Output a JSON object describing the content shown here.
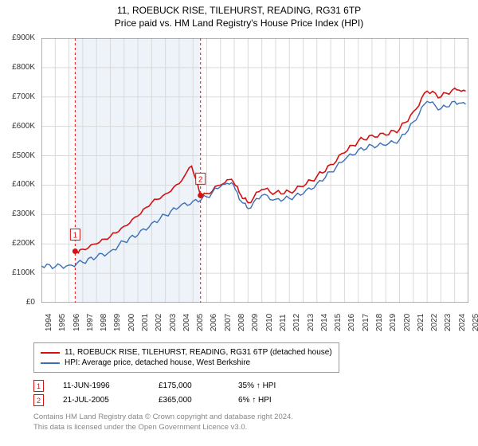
{
  "title": "11, ROEBUCK RISE, TILEHURST, READING, RG31 6TP",
  "subtitle": "Price paid vs. HM Land Registry's House Price Index (HPI)",
  "chart": {
    "type": "line",
    "background_color": "#ffffff",
    "grid_color": "#d9d9d9",
    "ylim": [
      0,
      900000
    ],
    "ytick_step": 100000,
    "y_ticks": [
      "£0",
      "£100K",
      "£200K",
      "£300K",
      "£400K",
      "£500K",
      "£600K",
      "£700K",
      "£800K",
      "£900K"
    ],
    "x_years": [
      1994,
      1995,
      1996,
      1997,
      1998,
      1999,
      2000,
      2001,
      2002,
      2003,
      2004,
      2005,
      2006,
      2007,
      2008,
      2009,
      2010,
      2011,
      2012,
      2013,
      2014,
      2015,
      2016,
      2017,
      2018,
      2019,
      2020,
      2021,
      2022,
      2023,
      2024,
      2025
    ],
    "shaded_band": {
      "from_year": 1996.5,
      "to_year": 2005.5,
      "fill": "#eef2f9"
    },
    "series": [
      {
        "name": "property",
        "label": "11, ROEBUCK RISE, TILEHURST, READING, RG31 6TP (detached house)",
        "color": "#d41111",
        "line_width": 1.6,
        "points": [
          [
            1996.45,
            175000
          ],
          [
            1997,
            182000
          ],
          [
            1998,
            200000
          ],
          [
            1999,
            225000
          ],
          [
            2000,
            260000
          ],
          [
            2001,
            295000
          ],
          [
            2002,
            340000
          ],
          [
            2003,
            370000
          ],
          [
            2004,
            405000
          ],
          [
            2004.9,
            465000
          ],
          [
            2005.55,
            365000
          ],
          [
            2006,
            372000
          ],
          [
            2007,
            400000
          ],
          [
            2007.8,
            420000
          ],
          [
            2008.5,
            365000
          ],
          [
            2009,
            340000
          ],
          [
            2010,
            385000
          ],
          [
            2011,
            375000
          ],
          [
            2012,
            378000
          ],
          [
            2013,
            395000
          ],
          [
            2014,
            430000
          ],
          [
            2015,
            470000
          ],
          [
            2016,
            510000
          ],
          [
            2017,
            550000
          ],
          [
            2018,
            570000
          ],
          [
            2019,
            570000
          ],
          [
            2020,
            590000
          ],
          [
            2021,
            650000
          ],
          [
            2022,
            720000
          ],
          [
            2023,
            700000
          ],
          [
            2024,
            730000
          ],
          [
            2024.8,
            720000
          ]
        ]
      },
      {
        "name": "hpi",
        "label": "HPI: Average price, detached house, West Berkshire",
        "color": "#3a6fb7",
        "line_width": 1.4,
        "points": [
          [
            1994,
            125000
          ],
          [
            1995,
            122000
          ],
          [
            1996,
            128000
          ],
          [
            1997,
            137000
          ],
          [
            1998,
            155000
          ],
          [
            1999,
            175000
          ],
          [
            2000,
            208000
          ],
          [
            2001,
            230000
          ],
          [
            2002,
            270000
          ],
          [
            2003,
            298000
          ],
          [
            2004,
            325000
          ],
          [
            2005,
            345000
          ],
          [
            2006,
            360000
          ],
          [
            2007,
            395000
          ],
          [
            2007.8,
            408000
          ],
          [
            2008.5,
            345000
          ],
          [
            2009,
            320000
          ],
          [
            2010,
            365000
          ],
          [
            2011,
            352000
          ],
          [
            2012,
            355000
          ],
          [
            2013,
            370000
          ],
          [
            2014,
            405000
          ],
          [
            2015,
            445000
          ],
          [
            2016,
            485000
          ],
          [
            2017,
            520000
          ],
          [
            2018,
            535000
          ],
          [
            2019,
            535000
          ],
          [
            2020,
            555000
          ],
          [
            2021,
            615000
          ],
          [
            2022,
            685000
          ],
          [
            2023,
            660000
          ],
          [
            2024,
            685000
          ],
          [
            2024.8,
            675000
          ]
        ]
      }
    ],
    "sale_markers": [
      {
        "n": "1",
        "year": 1996.45,
        "price": 175000,
        "color": "#d41111"
      },
      {
        "n": "2",
        "year": 2005.55,
        "price": 365000,
        "color": "#d41111"
      }
    ]
  },
  "legend": {
    "items": [
      {
        "color": "#d41111",
        "label": "11, ROEBUCK RISE, TILEHURST, READING, RG31 6TP (detached house)"
      },
      {
        "color": "#3a6fb7",
        "label": "HPI: Average price, detached house, West Berkshire"
      }
    ]
  },
  "sales": [
    {
      "n": "1",
      "color": "#d41111",
      "date": "11-JUN-1996",
      "price": "£175,000",
      "delta": "35% ↑ HPI"
    },
    {
      "n": "2",
      "color": "#d41111",
      "date": "21-JUL-2005",
      "price": "£365,000",
      "delta": "6% ↑ HPI"
    }
  ],
  "footer_line1": "Contains HM Land Registry data © Crown copyright and database right 2024.",
  "footer_line2": "This data is licensed under the Open Government Licence v3.0."
}
